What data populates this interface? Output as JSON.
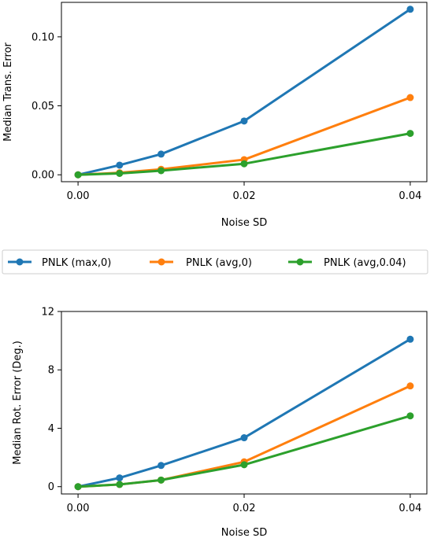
{
  "chart_data": [
    {
      "type": "line",
      "xlabel": "Noise SD",
      "ylabel": "Median Trans. Error",
      "xlim": [
        -0.002,
        0.042
      ],
      "ylim": [
        -0.005,
        0.125
      ],
      "xticks": [
        0.0,
        0.02,
        0.04
      ],
      "xtick_labels": [
        "0.00",
        "0.02",
        "0.04"
      ],
      "yticks": [
        0.0,
        0.05,
        0.1
      ],
      "ytick_labels": [
        "0.00",
        "0.05",
        "0.10"
      ],
      "x": [
        0.0,
        0.005,
        0.01,
        0.02,
        0.04
      ],
      "series": [
        {
          "name": "PNLK (max,0)",
          "color": "#1f77b4",
          "values": [
            0.0,
            0.007,
            0.015,
            0.039,
            0.12
          ]
        },
        {
          "name": "PNLK (avg,0)",
          "color": "#ff7f0e",
          "values": [
            0.0,
            0.0015,
            0.004,
            0.011,
            0.056
          ]
        },
        {
          "name": "PNLK (avg,0.04)",
          "color": "#2ca02c",
          "values": [
            0.0,
            0.001,
            0.003,
            0.008,
            0.03
          ]
        }
      ],
      "grid": false
    },
    {
      "type": "line",
      "xlabel": "Noise SD",
      "ylabel": "Median Rot. Error (Deg.)",
      "xlim": [
        -0.002,
        0.042
      ],
      "ylim": [
        -0.5,
        12.0
      ],
      "xticks": [
        0.0,
        0.02,
        0.04
      ],
      "xtick_labels": [
        "0.00",
        "0.02",
        "0.04"
      ],
      "yticks": [
        0,
        4,
        8,
        12
      ],
      "ytick_labels": [
        "0",
        "4",
        "8",
        "12"
      ],
      "x": [
        0.0,
        0.005,
        0.01,
        0.02,
        0.04
      ],
      "series": [
        {
          "name": "PNLK (max,0)",
          "color": "#1f77b4",
          "values": [
            0.0,
            0.6,
            1.45,
            3.35,
            10.1
          ]
        },
        {
          "name": "PNLK (avg,0)",
          "color": "#ff7f0e",
          "values": [
            0.0,
            0.15,
            0.45,
            1.7,
            6.9
          ]
        },
        {
          "name": "PNLK (avg,0.04)",
          "color": "#2ca02c",
          "values": [
            0.0,
            0.15,
            0.45,
            1.5,
            4.85
          ]
        }
      ],
      "grid": false
    }
  ],
  "legend": {
    "placement": "between-panels",
    "entries": [
      {
        "label": "PNLK (max,0)",
        "color": "#1f77b4"
      },
      {
        "label": "PNLK (avg,0)",
        "color": "#ff7f0e"
      },
      {
        "label": "PNLK (avg,0.04)",
        "color": "#2ca02c"
      }
    ]
  }
}
